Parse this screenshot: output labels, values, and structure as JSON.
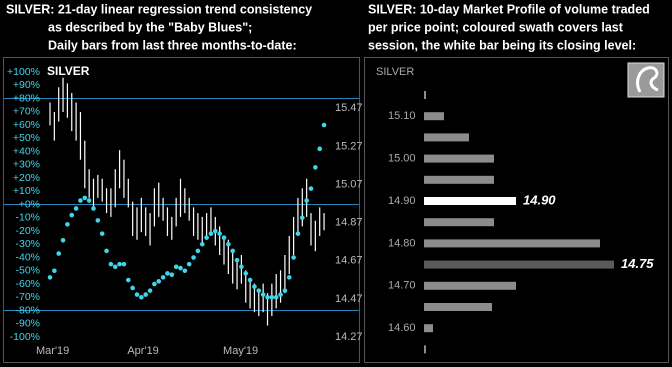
{
  "chart_data": [
    {
      "type": "trend",
      "title": [
        "SILVER:  21-day linear regression trend consistency",
        "as described by the \"Baby Blues\";",
        "Daily bars from last three months-to-date:"
      ],
      "label": "SILVER",
      "categories": [
        "Mar'19",
        null,
        null,
        null,
        null,
        null,
        null,
        null,
        null,
        null,
        null,
        null,
        null,
        null,
        null,
        null,
        null,
        null,
        null,
        null,
        null,
        "Apr'19",
        null,
        null,
        null,
        null,
        null,
        null,
        null,
        null,
        null,
        null,
        null,
        null,
        null,
        null,
        null,
        null,
        null,
        null,
        null,
        null,
        null,
        "May'19",
        null,
        null,
        null,
        null,
        null,
        null,
        null,
        null,
        null,
        null,
        null,
        null,
        null,
        null,
        null,
        null,
        null,
        null,
        null,
        null
      ],
      "ylim": [
        -100,
        100
      ],
      "yticks": [
        {
          "value": 100,
          "label": "+100%"
        },
        {
          "value": 90,
          "label": "+90%"
        },
        {
          "value": 80,
          "label": "+80%"
        },
        {
          "value": 70,
          "label": "+70%"
        },
        {
          "value": 60,
          "label": "+60%"
        },
        {
          "value": 50,
          "label": "+50%"
        },
        {
          "value": 40,
          "label": "+40%"
        },
        {
          "value": 30,
          "label": "+30%"
        },
        {
          "value": 20,
          "label": "+20%"
        },
        {
          "value": 10,
          "label": "+10%"
        },
        {
          "value": 0,
          "label": "+0%"
        },
        {
          "value": -10,
          "label": "-10%"
        },
        {
          "value": -20,
          "label": "-20%"
        },
        {
          "value": -30,
          "label": "-30%"
        },
        {
          "value": -40,
          "label": "-40%"
        },
        {
          "value": -50,
          "label": "-50%"
        },
        {
          "value": -60,
          "label": "-60%"
        },
        {
          "value": -70,
          "label": "-70%"
        },
        {
          "value": -80,
          "label": "-80%"
        },
        {
          "value": -90,
          "label": "-90%"
        },
        {
          "value": -100,
          "label": "-100%"
        }
      ],
      "y2lim": [
        14.27,
        15.66
      ],
      "y2ticks": [
        15.47,
        15.27,
        15.07,
        14.87,
        14.67,
        14.47,
        14.27
      ],
      "hlines": [
        80,
        0,
        -80
      ],
      "hline_color": "#2a86b8",
      "series": [
        {
          "type": "range",
          "axis": "y2",
          "color": "#ffffff",
          "low": [
            15.38,
            15.3,
            15.4,
            15.45,
            15.42,
            15.35,
            15.3,
            15.2,
            15.05,
            15.0,
            14.95,
            15.0,
            14.98,
            14.92,
            14.9,
            14.95,
            15.05,
            15.0,
            14.95,
            14.8,
            14.78,
            14.82,
            14.8,
            14.75,
            14.85,
            14.9,
            14.88,
            14.8,
            14.78,
            14.85,
            14.9,
            14.92,
            14.88,
            14.8,
            14.78,
            14.75,
            14.78,
            14.8,
            14.75,
            14.7,
            14.65,
            14.6,
            14.55,
            14.52,
            14.55,
            14.45,
            14.42,
            14.4,
            14.38,
            14.4,
            14.33,
            14.38,
            14.42,
            14.45,
            14.5,
            14.6,
            14.7,
            14.8,
            14.85,
            14.9,
            14.75,
            14.72,
            14.8,
            14.83
          ],
          "high": [
            15.5,
            15.45,
            15.58,
            15.63,
            15.6,
            15.55,
            15.5,
            15.45,
            15.3,
            15.15,
            15.1,
            15.12,
            15.1,
            15.05,
            15.05,
            15.15,
            15.25,
            15.2,
            15.1,
            14.98,
            14.95,
            15.0,
            14.95,
            14.92,
            15.05,
            15.08,
            15.0,
            14.95,
            14.9,
            15.0,
            15.1,
            15.05,
            15.0,
            14.95,
            14.92,
            14.9,
            14.92,
            14.95,
            14.9,
            14.85,
            14.8,
            14.78,
            14.72,
            14.68,
            14.7,
            14.62,
            14.58,
            14.55,
            14.52,
            14.55,
            14.5,
            14.55,
            14.6,
            14.62,
            14.7,
            14.8,
            14.9,
            15.0,
            15.05,
            15.1,
            14.92,
            14.88,
            14.95,
            14.92
          ]
        },
        {
          "type": "dot",
          "color": "#3fd6ea",
          "values": [
            -55,
            -50,
            -37,
            -27,
            -15,
            -8,
            -3,
            3,
            5,
            3,
            -3,
            -12,
            -22,
            -35,
            -45,
            -47,
            -45,
            -45,
            -57,
            -63,
            -68,
            -70,
            -68,
            -65,
            -60,
            -58,
            -55,
            -52,
            -53,
            -47,
            -48,
            -50,
            -45,
            -40,
            -35,
            -30,
            -25,
            -22,
            -20,
            -22,
            -25,
            -30,
            -35,
            -42,
            -47,
            -52,
            -57,
            -62,
            -65,
            -68,
            -70,
            -70,
            -70,
            -68,
            -65,
            -55,
            -40,
            -22,
            -10,
            3,
            12,
            28,
            42,
            60
          ]
        }
      ]
    },
    {
      "type": "hbar",
      "title": [
        "SILVER:  10-day Market Profile of volume traded",
        "per price point; coloured swath covers last",
        "session, the white bar being its closing level:"
      ],
      "label": "SILVER",
      "categories": [
        null,
        "15.10",
        null,
        "15.00",
        null,
        "14.90",
        null,
        "14.80",
        null,
        "14.70",
        null,
        "14.60",
        null
      ],
      "values": [
        2,
        20,
        45,
        70,
        70,
        92,
        70,
        176,
        190,
        92,
        68,
        9,
        2
      ],
      "colors": [
        "#8c8c8c",
        "#8c8c8c",
        "#8c8c8c",
        "#8c8c8c",
        "#8c8c8c",
        "#ffffff",
        "#8c8c8c",
        "#8c8c8c",
        "#5a5a5a",
        "#8c8c8c",
        "#8c8c8c",
        "#8c8c8c",
        "#8c8c8c"
      ],
      "bar_labels": [
        null,
        null,
        null,
        null,
        null,
        "14.90",
        null,
        null,
        "14.75",
        null,
        null,
        null,
        null
      ]
    }
  ]
}
